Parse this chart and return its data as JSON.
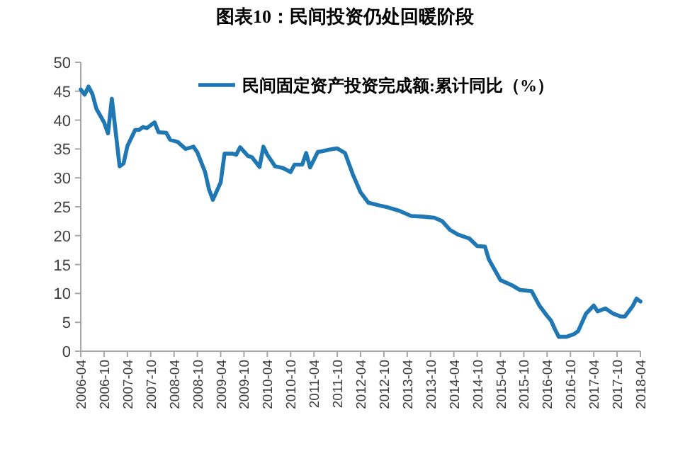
{
  "chart_data": {
    "type": "line",
    "title": "图表10：民间投资仍处回暖阶段",
    "x": [
      "2006-04",
      "2006-05",
      "2006-06",
      "2006-07",
      "2006-08",
      "2006-10",
      "2006-11",
      "2006-12",
      "2007-02",
      "2007-03",
      "2007-04",
      "2007-06",
      "2007-07",
      "2007-08",
      "2007-09",
      "2007-11",
      "2007-12",
      "2008-02",
      "2008-03",
      "2008-05",
      "2008-07",
      "2008-09",
      "2008-10",
      "2008-12",
      "2009-01",
      "2009-02",
      "2009-04",
      "2009-05",
      "2009-07",
      "2009-08",
      "2009-09",
      "2009-11",
      "2009-12",
      "2010-02",
      "2010-03",
      "2010-04",
      "2010-06",
      "2010-08",
      "2010-10",
      "2010-11",
      "2011-01",
      "2011-02",
      "2011-03",
      "2011-05",
      "2011-06",
      "2011-08",
      "2011-10",
      "2011-12",
      "2012-02",
      "2012-04",
      "2012-06",
      "2012-09",
      "2012-11",
      "2013-02",
      "2013-05",
      "2013-08",
      "2013-11",
      "2014-01",
      "2014-03",
      "2014-05",
      "2014-08",
      "2014-10",
      "2014-12",
      "2015-01",
      "2015-03",
      "2015-04",
      "2015-07",
      "2015-09",
      "2015-12",
      "2016-02",
      "2016-04",
      "2016-05",
      "2016-06",
      "2016-07",
      "2016-09",
      "2016-11",
      "2016-12",
      "2017-02",
      "2017-04",
      "2017-05",
      "2017-07",
      "2017-09",
      "2017-11",
      "2017-12",
      "2018-02",
      "2018-03",
      "2018-04"
    ],
    "series": [
      {
        "name": "民间固定资产投资完成额:累计同比（%）",
        "color": "#1f77b4",
        "values": [
          45.3,
          44.4,
          45.8,
          44.5,
          42,
          39.6,
          37.7,
          43.7,
          32,
          32.5,
          35.5,
          38.3,
          38.3,
          38.8,
          38.6,
          39.6,
          37.9,
          37.8,
          36.6,
          36.2,
          35,
          35.4,
          34.4,
          31,
          28,
          26.2,
          29.2,
          34.2,
          34.2,
          34,
          35.3,
          33.8,
          33.6,
          31.9,
          35.4,
          34,
          32,
          31.7,
          31,
          32.3,
          32.3,
          34.3,
          31.8,
          34.5,
          34.6,
          34.9,
          35.1,
          34.3,
          30.6,
          27.5,
          25.7,
          25.2,
          24.9,
          24.3,
          23.4,
          23.3,
          23.1,
          22.5,
          21,
          20.2,
          19.5,
          18.2,
          18.1,
          15.9,
          13.5,
          12.3,
          11.4,
          10.6,
          10.4,
          7.9,
          6.1,
          5.3,
          3.8,
          2.5,
          2.5,
          3,
          3.5,
          6.5,
          7.9,
          6.9,
          7.4,
          6.5,
          6,
          6,
          7.8,
          9.1,
          8.6
        ]
      }
    ],
    "xlim": [
      "2006-04",
      "2018-04"
    ],
    "xticks": [
      "2006-04",
      "2006-10",
      "2007-04",
      "2007-10",
      "2008-04",
      "2008-10",
      "2009-04",
      "2009-10",
      "2010-04",
      "2010-10",
      "2011-04",
      "2011-10",
      "2012-04",
      "2012-10",
      "2013-04",
      "2013-10",
      "2014-04",
      "2014-10",
      "2015-04",
      "2015-10",
      "2016-04",
      "2016-10",
      "2017-04",
      "2017-10",
      "2018-04"
    ],
    "ylim": [
      0,
      50
    ],
    "yticks": [
      0,
      5,
      10,
      15,
      20,
      25,
      30,
      35,
      40,
      45,
      50
    ],
    "legend": "top right"
  }
}
